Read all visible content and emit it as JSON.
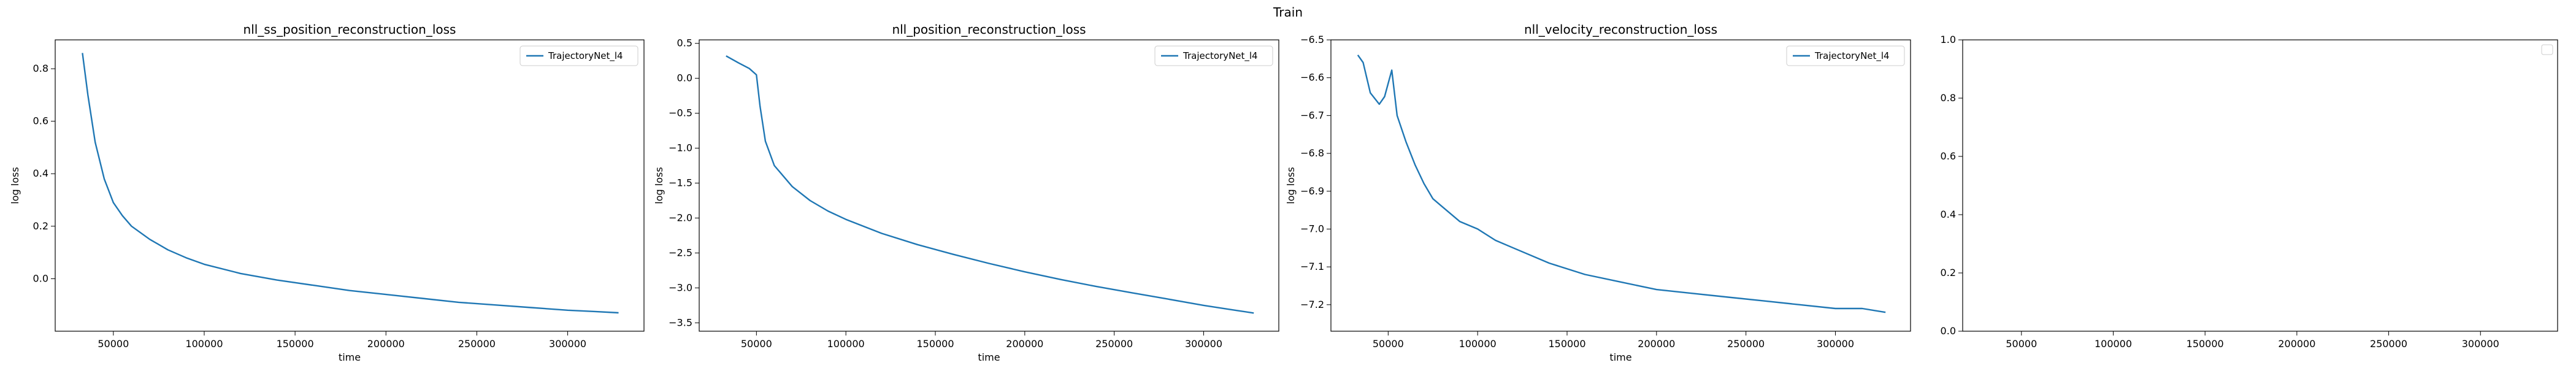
{
  "figure": {
    "suptitle": "Train"
  },
  "colors": {
    "series": "#1f77b4"
  },
  "chart_data": [
    {
      "type": "line",
      "title": "nll_ss_position_reconstruction_loss",
      "xlabel": "time",
      "ylabel": "log loss",
      "xlim": [
        18000,
        342000
      ],
      "ylim": [
        -0.2,
        0.91
      ],
      "xticks": [
        50000,
        100000,
        150000,
        200000,
        250000,
        300000
      ],
      "xtick_labels": [
        "50000",
        "100000",
        "150000",
        "200000",
        "250000",
        "300000"
      ],
      "yticks": [
        0.0,
        0.2,
        0.4,
        0.6,
        0.8
      ],
      "ytick_labels": [
        "0.0",
        "0.2",
        "0.4",
        "0.6",
        "0.8"
      ],
      "legend": {
        "placement": "upper-right",
        "entries": [
          "TrajectoryNet_l4"
        ]
      },
      "series": [
        {
          "name": "TrajectoryNet_l4",
          "x": [
            33000,
            36000,
            40000,
            45000,
            50000,
            55000,
            60000,
            70000,
            80000,
            90000,
            100000,
            120000,
            140000,
            160000,
            180000,
            200000,
            220000,
            240000,
            260000,
            280000,
            300000,
            315000,
            328000
          ],
          "y": [
            0.86,
            0.7,
            0.52,
            0.38,
            0.29,
            0.24,
            0.2,
            0.15,
            0.11,
            0.08,
            0.055,
            0.02,
            -0.005,
            -0.025,
            -0.045,
            -0.06,
            -0.075,
            -0.09,
            -0.1,
            -0.11,
            -0.12,
            -0.125,
            -0.13
          ]
        }
      ]
    },
    {
      "type": "line",
      "title": "nll_position_reconstruction_loss",
      "xlabel": "time",
      "ylabel": "log loss",
      "xlim": [
        18000,
        342000
      ],
      "ylim": [
        -3.62,
        0.55
      ],
      "xticks": [
        50000,
        100000,
        150000,
        200000,
        250000,
        300000
      ],
      "xtick_labels": [
        "50000",
        "100000",
        "150000",
        "200000",
        "250000",
        "300000"
      ],
      "yticks": [
        0.5,
        0.0,
        -0.5,
        -1.0,
        -1.5,
        -2.0,
        -2.5,
        -3.0,
        -3.5
      ],
      "ytick_labels": [
        "0.5",
        "0.0",
        "−0.5",
        "−1.0",
        "−1.5",
        "−2.0",
        "−2.5",
        "−3.0",
        "−3.5"
      ],
      "legend": {
        "placement": "upper-right",
        "entries": [
          "TrajectoryNet_l4"
        ]
      },
      "series": [
        {
          "name": "TrajectoryNet_l4",
          "x": [
            33000,
            40000,
            46000,
            50000,
            52000,
            55000,
            60000,
            70000,
            80000,
            90000,
            100000,
            120000,
            140000,
            160000,
            180000,
            200000,
            220000,
            240000,
            260000,
            280000,
            300000,
            315000,
            328000
          ],
          "y": [
            0.32,
            0.22,
            0.14,
            0.05,
            -0.4,
            -0.9,
            -1.25,
            -1.55,
            -1.75,
            -1.9,
            -2.02,
            -2.22,
            -2.38,
            -2.52,
            -2.65,
            -2.77,
            -2.88,
            -2.98,
            -3.07,
            -3.16,
            -3.25,
            -3.31,
            -3.36
          ]
        }
      ]
    },
    {
      "type": "line",
      "title": "nll_velocity_reconstruction_loss",
      "xlabel": "time",
      "ylabel": "log loss",
      "xlim": [
        18000,
        342000
      ],
      "ylim": [
        -7.27,
        -6.5
      ],
      "xticks": [
        50000,
        100000,
        150000,
        200000,
        250000,
        300000
      ],
      "xtick_labels": [
        "50000",
        "100000",
        "150000",
        "200000",
        "250000",
        "300000"
      ],
      "yticks": [
        -6.5,
        -6.6,
        -6.7,
        -6.8,
        -6.9,
        -7.0,
        -7.1,
        -7.2
      ],
      "ytick_labels": [
        "−6.5",
        "−6.6",
        "−6.7",
        "−6.8",
        "−6.9",
        "−7.0",
        "−7.1",
        "−7.2"
      ],
      "legend": {
        "placement": "upper-right",
        "entries": [
          "TrajectoryNet_l4"
        ]
      },
      "series": [
        {
          "name": "TrajectoryNet_l4",
          "x": [
            33000,
            36000,
            40000,
            45000,
            48000,
            52000,
            55000,
            60000,
            65000,
            70000,
            75000,
            80000,
            90000,
            100000,
            110000,
            120000,
            140000,
            160000,
            180000,
            200000,
            220000,
            240000,
            260000,
            280000,
            300000,
            315000,
            328000
          ],
          "y": [
            -6.54,
            -6.56,
            -6.64,
            -6.67,
            -6.65,
            -6.58,
            -6.7,
            -6.77,
            -6.83,
            -6.88,
            -6.92,
            -6.94,
            -6.98,
            -7.0,
            -7.03,
            -7.05,
            -7.09,
            -7.12,
            -7.14,
            -7.16,
            -7.17,
            -7.18,
            -7.19,
            -7.2,
            -7.21,
            -7.21,
            -7.22
          ]
        }
      ]
    },
    {
      "type": "line",
      "title": "",
      "xlabel": "",
      "ylabel": "",
      "xlim": [
        18000,
        342000
      ],
      "ylim": [
        0.0,
        1.0
      ],
      "xticks": [
        50000,
        100000,
        150000,
        200000,
        250000,
        300000
      ],
      "xtick_labels": [
        "50000",
        "100000",
        "150000",
        "200000",
        "250000",
        "300000"
      ],
      "yticks": [
        0.0,
        0.2,
        0.4,
        0.6,
        0.8,
        1.0
      ],
      "ytick_labels": [
        "0.0",
        "0.2",
        "0.4",
        "0.6",
        "0.8",
        "1.0"
      ],
      "legend": {
        "placement": "upper-right",
        "entries": []
      },
      "series": []
    }
  ]
}
